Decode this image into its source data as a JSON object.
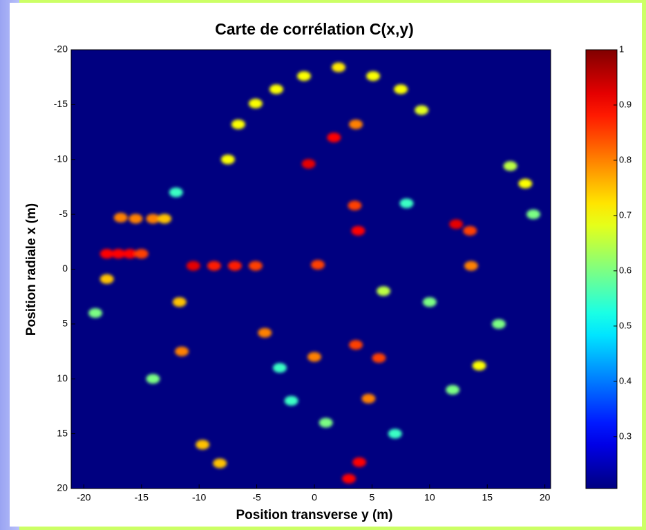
{
  "chart_data": {
    "type": "heatmap",
    "title": "Carte de corrélation C(x,y)",
    "xlabel": "Position transverse  y (m)",
    "ylabel": "Position radiale  x (m)",
    "xlim": [
      -21.1,
      20.5
    ],
    "xticks": [
      -20,
      -15,
      -10,
      -5,
      0,
      5,
      10,
      15,
      20
    ],
    "ylim": [
      -20,
      20
    ],
    "yticks": [
      -20,
      -15,
      -10,
      -5,
      0,
      5,
      10,
      15,
      20
    ],
    "y_inverted": true,
    "clim": [
      0.206,
      1
    ],
    "cticks": [
      0.3,
      0.4,
      0.5,
      0.6,
      0.7,
      0.8,
      0.9,
      1
    ],
    "colormap": "jet",
    "x": [
      -0.5,
      1.7,
      3.6,
      -18,
      -17,
      -16,
      -15,
      -16.8,
      -15.5,
      -14,
      -13,
      -10.5,
      -8.7,
      -6.9,
      -5.1,
      0.3,
      12.3,
      13.5,
      3.5,
      3.8,
      -7.5,
      -6.6,
      -5.1,
      -3.3,
      -0.9,
      2.1,
      5.1,
      7.5,
      9.3,
      3.6,
      5.6,
      4.7,
      0,
      3.9,
      3.0,
      -4.3,
      -11.5,
      -9.7,
      -8.2,
      -11.7,
      -18,
      13.6,
      14.3,
      18.3,
      17,
      -19,
      -14,
      8,
      10,
      -2,
      1,
      6,
      16,
      19,
      -12,
      12,
      -3,
      7
    ],
    "y": [
      -9.6,
      -12.0,
      -13.2,
      -1.4,
      -1.4,
      -1.4,
      -1.4,
      -4.7,
      -4.6,
      -4.6,
      -4.6,
      -0.3,
      -0.3,
      -0.3,
      -0.3,
      -0.4,
      -4.1,
      -3.5,
      -5.8,
      -3.5,
      -10,
      -13.2,
      -15.1,
      -16.4,
      -17.6,
      -18.4,
      -17.6,
      -16.4,
      -14.5,
      6.9,
      8.1,
      11.8,
      8.0,
      17.6,
      19.1,
      5.8,
      7.5,
      16,
      17.7,
      3,
      0.9,
      -0.3,
      8.8,
      -7.8,
      -9.4,
      4,
      10,
      -6,
      3,
      12,
      14,
      2,
      5,
      -5,
      -7,
      11,
      9,
      15
    ],
    "values": [
      0.92,
      0.9,
      0.8,
      0.9,
      0.9,
      0.9,
      0.85,
      0.8,
      0.8,
      0.8,
      0.75,
      0.92,
      0.88,
      0.88,
      0.85,
      0.85,
      0.92,
      0.85,
      0.85,
      0.9,
      0.7,
      0.7,
      0.7,
      0.7,
      0.7,
      0.72,
      0.7,
      0.7,
      0.68,
      0.85,
      0.85,
      0.8,
      0.8,
      0.9,
      0.9,
      0.8,
      0.8,
      0.75,
      0.75,
      0.75,
      0.75,
      0.8,
      0.7,
      0.7,
      0.65,
      0.6,
      0.6,
      0.55,
      0.6,
      0.55,
      0.6,
      0.65,
      0.6,
      0.6,
      0.55,
      0.6,
      0.55,
      0.55
    ]
  }
}
